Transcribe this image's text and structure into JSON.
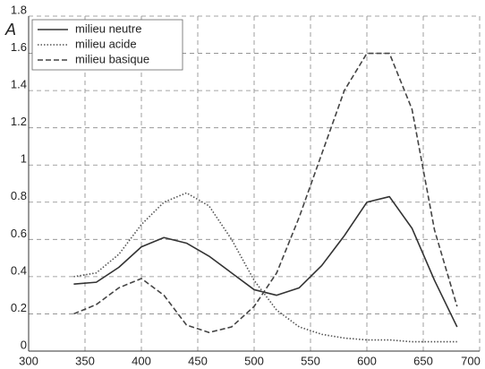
{
  "chart_data": {
    "type": "line",
    "y_label": "A",
    "x": [
      340,
      360,
      380,
      400,
      420,
      440,
      460,
      480,
      500,
      520,
      540,
      560,
      580,
      600,
      620,
      640,
      660,
      680
    ],
    "series": [
      {
        "name": "milieu neutre",
        "color": "#333333",
        "dash": "solid",
        "values": [
          0.36,
          0.37,
          0.45,
          0.56,
          0.61,
          0.58,
          0.51,
          0.42,
          0.33,
          0.3,
          0.34,
          0.46,
          0.62,
          0.8,
          0.83,
          0.66,
          0.38,
          0.13
        ]
      },
      {
        "name": "milieu acide",
        "color": "#555555",
        "dash": "dotted",
        "values": [
          0.4,
          0.42,
          0.52,
          0.68,
          0.8,
          0.85,
          0.78,
          0.6,
          0.38,
          0.22,
          0.13,
          0.09,
          0.07,
          0.06,
          0.06,
          0.05,
          0.05,
          0.05
        ]
      },
      {
        "name": "milieu basique",
        "color": "#444444",
        "dash": "dashed",
        "values": [
          0.2,
          0.25,
          0.34,
          0.39,
          0.3,
          0.14,
          0.1,
          0.13,
          0.24,
          0.42,
          0.72,
          1.06,
          1.4,
          1.6,
          1.6,
          1.3,
          0.65,
          0.24
        ]
      }
    ],
    "xlim": [
      300,
      700
    ],
    "xticks": [
      300,
      350,
      400,
      450,
      500,
      550,
      600,
      650,
      700
    ],
    "ylim": [
      0,
      1.8
    ],
    "yticks": [
      0,
      0.2,
      0.4,
      0.6,
      0.8,
      1,
      1.2,
      1.4,
      1.6,
      1.8
    ],
    "grid": true,
    "legend": "upper-left"
  }
}
